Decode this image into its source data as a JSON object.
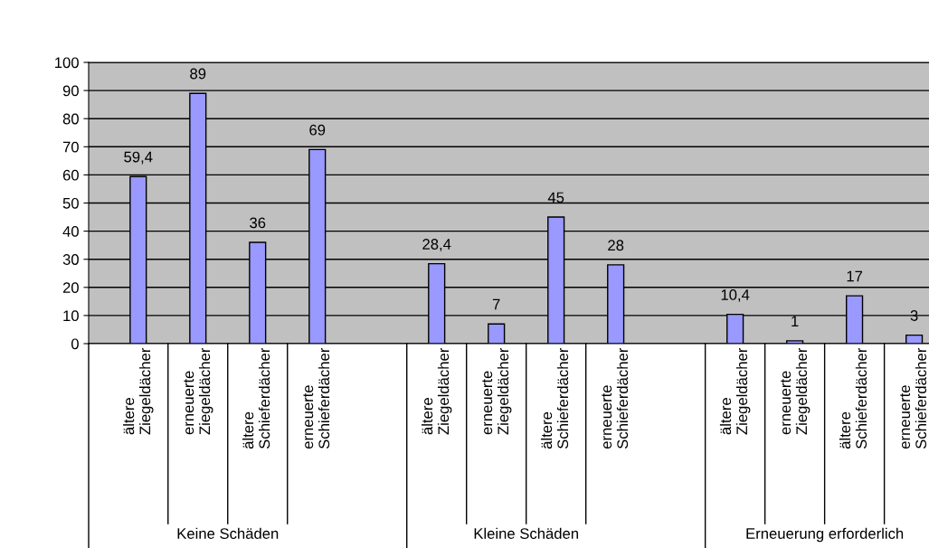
{
  "chart_data": {
    "type": "bar",
    "categories": [
      "ältere Ziegeldächer",
      "erneuerte Ziegeldächer",
      "ältere Schieferdächer",
      "erneuerte Schieferdächer",
      null,
      "ältere Ziegeldächer",
      "erneuerte Ziegeldächer",
      "ältere Schieferdächer",
      "erneuerte Schieferdächer",
      null,
      "ältere Ziegeldächer",
      "erneuerte Ziegeldächer",
      "ältere Schieferdächer",
      "erneuerte Schieferdächer"
    ],
    "values": [
      59.4,
      89,
      36,
      69,
      null,
      28.4,
      7,
      45,
      28,
      null,
      10.4,
      1,
      17,
      3
    ],
    "value_labels": [
      "59,4",
      "89",
      "36",
      "69",
      null,
      "28,4",
      "7",
      "45",
      "28",
      null,
      "10,4",
      "1",
      "17",
      "3"
    ],
    "color": "#9999ff",
    "ylim": [
      0,
      100
    ],
    "yticks": [
      0,
      10,
      20,
      30,
      40,
      50,
      60,
      70,
      80,
      90,
      100
    ],
    "grid": "y",
    "annotations": [
      "Keine Schäden",
      "Kleine Schäden",
      "Erneuerung erforderlich"
    ]
  }
}
